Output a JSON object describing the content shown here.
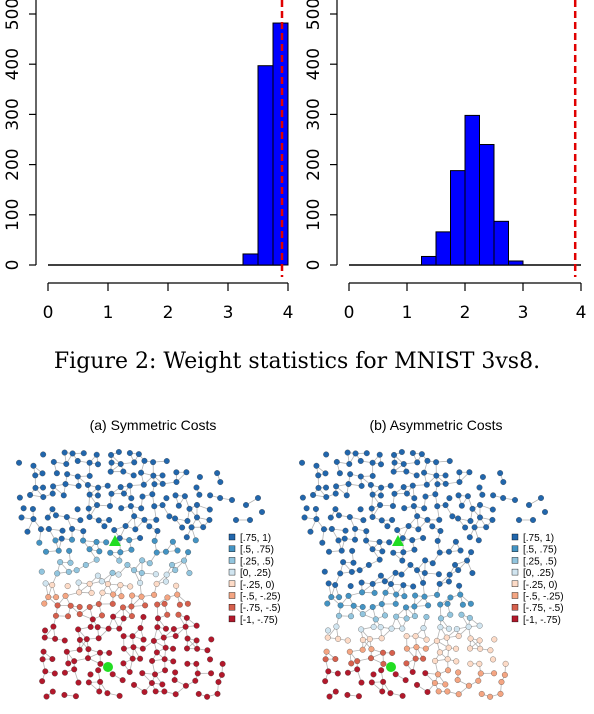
{
  "figure2": {
    "caption": "Figure 2: Weight statistics for MNIST 3vs8.",
    "chart_data": [
      {
        "type": "bar",
        "title": "",
        "xlabel": "",
        "ylabel": "",
        "xlim": [
          0,
          4
        ],
        "ylim": [
          0,
          500
        ],
        "x_ticks": [
          "0",
          "1",
          "2",
          "3",
          "4"
        ],
        "y_ticks": [
          "0",
          "100",
          "200",
          "300",
          "400",
          "500"
        ],
        "bin_width": 0.25,
        "bin_starts": [
          3.25,
          3.5,
          3.75
        ],
        "values": [
          22,
          397,
          482
        ],
        "reference_line": 3.9,
        "bar_color": "#0000ff",
        "reference_color": "#e00000"
      },
      {
        "type": "bar",
        "title": "",
        "xlabel": "",
        "ylabel": "",
        "xlim": [
          0,
          4
        ],
        "ylim": [
          0,
          500
        ],
        "x_ticks": [
          "0",
          "1",
          "2",
          "3",
          "4"
        ],
        "y_ticks": [
          "0",
          "100",
          "200",
          "300",
          "400",
          "500"
        ],
        "bin_width": 0.25,
        "bin_starts": [
          1.25,
          1.5,
          1.75,
          2.0,
          2.25,
          2.5,
          2.75,
          3.0
        ],
        "values": [
          17,
          66,
          188,
          298,
          240,
          87,
          8,
          0
        ],
        "reference_line": 3.9,
        "bar_color": "#0000ff",
        "reference_color": "#e00000"
      }
    ]
  },
  "figure3": {
    "panels": [
      {
        "title": "(a) Symmetric Costs",
        "boundary_fraction": 0.56,
        "green_fraction": 0.62
      },
      {
        "title": "(b) Asymmetric Costs",
        "boundary_fraction": 0.76,
        "green_fraction": 0.82
      }
    ],
    "legend": [
      {
        "label": "[.75, 1)",
        "color": "#2166ac"
      },
      {
        "label": "[.5, .75)",
        "color": "#4393c3"
      },
      {
        "label": "[.25, .5)",
        "color": "#92c5de"
      },
      {
        "label": "[0, .25)",
        "color": "#d1e5f0"
      },
      {
        "label": "[-.25, 0)",
        "color": "#fddbc7"
      },
      {
        "label": "[-.5, -.25)",
        "color": "#f4a582"
      },
      {
        "label": "[-.75, -.5)",
        "color": "#d6604d"
      },
      {
        "label": "[-1, -.75)",
        "color": "#b2182b"
      }
    ],
    "marker_color": "#22dd22",
    "edge_color": "#b4b4b4"
  }
}
